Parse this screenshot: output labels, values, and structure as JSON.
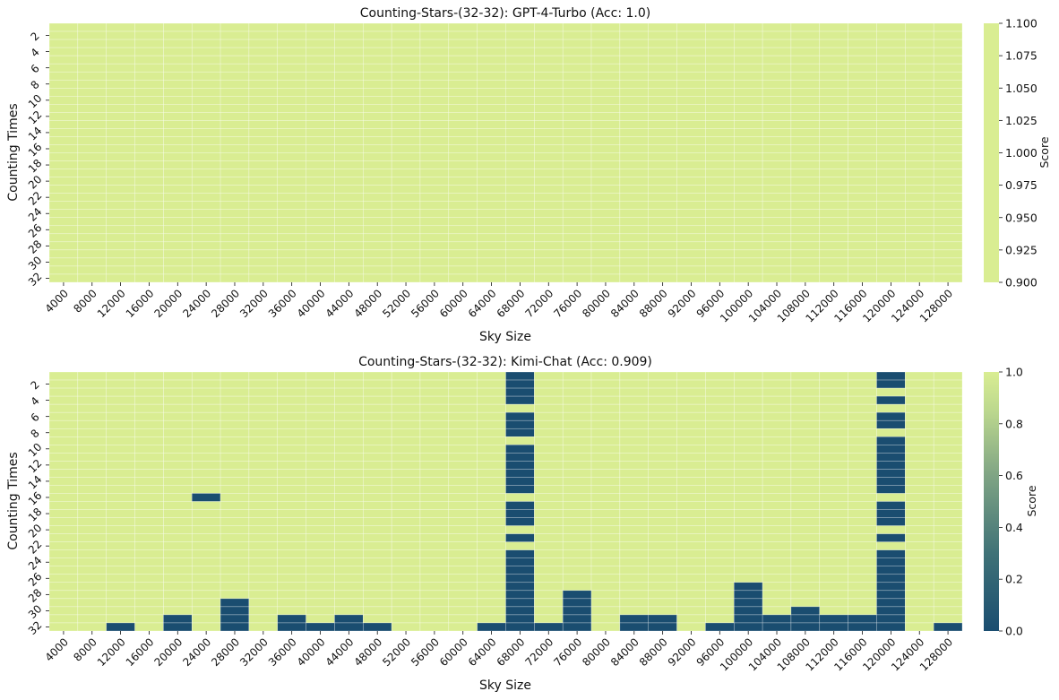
{
  "chart_data": [
    {
      "type": "heatmap",
      "title": "Counting-Stars-(32-32): GPT-4-Turbo (Acc: 1.0)",
      "xlabel": "Sky Size",
      "ylabel": "Counting Times",
      "colorbar_label": "Score",
      "x_categories": [
        4000,
        8000,
        12000,
        16000,
        20000,
        24000,
        28000,
        32000,
        36000,
        40000,
        44000,
        48000,
        52000,
        56000,
        60000,
        64000,
        68000,
        72000,
        76000,
        80000,
        84000,
        88000,
        92000,
        96000,
        100000,
        104000,
        108000,
        112000,
        116000,
        120000,
        124000,
        128000
      ],
      "y_rows": 32,
      "y_tick_labels": [
        "2",
        "4",
        "6",
        "8",
        "10",
        "12",
        "14",
        "16",
        "18",
        "20",
        "22",
        "24",
        "26",
        "28",
        "30",
        "32"
      ],
      "colorbar_range": [
        0.9,
        1.1
      ],
      "colorbar_ticks": [
        "0.900",
        "0.925",
        "0.950",
        "0.975",
        "1.000",
        "1.025",
        "1.050",
        "1.075",
        "1.100"
      ],
      "all_scores": 1,
      "column_zero_counts_from_bottom": [
        0,
        0,
        0,
        0,
        0,
        0,
        0,
        0,
        0,
        0,
        0,
        0,
        0,
        0,
        0,
        0,
        0,
        0,
        0,
        0,
        0,
        0,
        0,
        0,
        0,
        0,
        0,
        0,
        0,
        0,
        0,
        0
      ],
      "colors": {
        "high": "#d9ed92",
        "low": "#1a4d70"
      }
    },
    {
      "type": "heatmap",
      "title": "Counting-Stars-(32-32): Kimi-Chat (Acc: 0.909)",
      "xlabel": "Sky Size",
      "ylabel": "Counting Times",
      "colorbar_label": "Score",
      "x_categories": [
        4000,
        8000,
        12000,
        16000,
        20000,
        24000,
        28000,
        32000,
        36000,
        40000,
        44000,
        48000,
        52000,
        56000,
        60000,
        64000,
        68000,
        72000,
        76000,
        80000,
        84000,
        88000,
        92000,
        96000,
        100000,
        104000,
        108000,
        112000,
        116000,
        120000,
        124000,
        128000
      ],
      "y_rows": 32,
      "y_tick_labels": [
        "2",
        "4",
        "6",
        "8",
        "10",
        "12",
        "14",
        "16",
        "18",
        "20",
        "22",
        "24",
        "26",
        "28",
        "30",
        "32"
      ],
      "colorbar_range": [
        0,
        1
      ],
      "colorbar_ticks": [
        "0.0",
        "0.2",
        "0.4",
        "0.6",
        "0.8",
        "1.0"
      ],
      "column_zero_counts_from_bottom": [
        0,
        0,
        1,
        0,
        2,
        0,
        4,
        0,
        2,
        1,
        2,
        1,
        0,
        0,
        0,
        1,
        0,
        1,
        5,
        0,
        2,
        2,
        0,
        1,
        6,
        2,
        3,
        2,
        2,
        0,
        0,
        1
      ],
      "extra_zero_cells": [
        {
          "x": 24000,
          "rows": [
            16
          ]
        },
        {
          "x": 68000,
          "rows": [
            1,
            2,
            3,
            4,
            6,
            7,
            8,
            10,
            11,
            12,
            13,
            14,
            15,
            17,
            18,
            19,
            21,
            23,
            24,
            25,
            26,
            27,
            28,
            29,
            30,
            31,
            32
          ]
        },
        {
          "x": 120000,
          "rows": [
            1,
            2,
            4,
            6,
            7,
            9,
            10,
            11,
            12,
            13,
            14,
            15,
            17,
            18,
            19,
            21,
            23,
            24,
            25,
            26,
            27,
            28,
            29,
            30,
            31,
            32
          ]
        }
      ],
      "colors": {
        "high": "#d9ed92",
        "low": "#1a4d70"
      }
    }
  ]
}
